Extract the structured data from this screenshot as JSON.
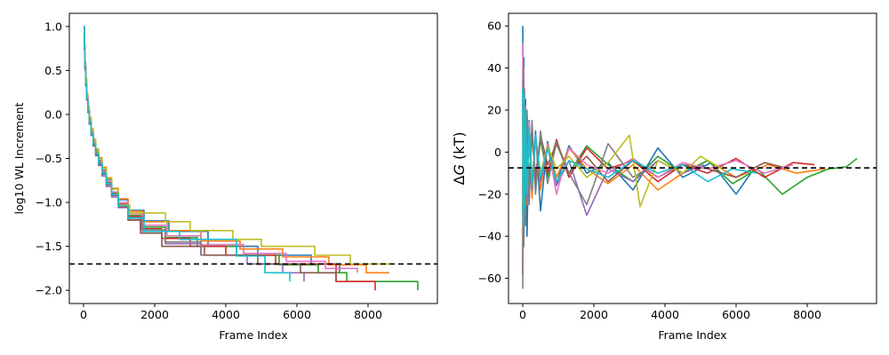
{
  "colors": {
    "tab10": [
      "#1f77b4",
      "#ff7f0e",
      "#2ca02c",
      "#d62728",
      "#9467bd",
      "#8c564b",
      "#e377c2",
      "#7f7f7f",
      "#bcbd22",
      "#17becf"
    ],
    "reference_line": "#000000"
  },
  "chart_data": [
    {
      "type": "line",
      "title": "",
      "xlabel": "Frame Index",
      "ylabel": "log10 WL Increment",
      "xlim": [
        -400,
        9950
      ],
      "ylim": [
        -2.15,
        1.15
      ],
      "xticks": [
        0,
        2000,
        4000,
        6000,
        8000
      ],
      "yticks": [
        1.0,
        0.5,
        0.0,
        -0.5,
        -1.0,
        -1.5,
        -2.0
      ],
      "xtick_labels": [
        "0",
        "2000",
        "4000",
        "6000",
        "8000"
      ],
      "ytick_labels": [
        "1.0",
        "0.5",
        "0.0",
        "−0.5",
        "−1.0",
        "−1.5",
        "−2.0"
      ],
      "reference_line": {
        "y": -1.7,
        "style": "dashed"
      },
      "grid": false,
      "series": [
        {
          "x": [
            0,
            20,
            40,
            60,
            90,
            120,
            160,
            210,
            270,
            340,
            420,
            520,
            640,
            790,
            980,
            1250,
            1700,
            2400,
            3500,
            4900,
            6400,
            7200
          ],
          "y": [
            1.0,
            0.78,
            0.55,
            0.36,
            0.19,
            0.05,
            -0.08,
            -0.2,
            -0.31,
            -0.41,
            -0.52,
            -0.63,
            -0.74,
            -0.85,
            -0.97,
            -1.09,
            -1.21,
            -1.33,
            -1.5,
            -1.6,
            -1.7,
            -1.8
          ]
        },
        {
          "x": [
            0,
            20,
            40,
            60,
            90,
            120,
            160,
            210,
            270,
            340,
            420,
            520,
            640,
            790,
            980,
            1250,
            1650,
            2350,
            3300,
            4400,
            5600,
            6900,
            7950,
            8600
          ],
          "y": [
            1.0,
            0.8,
            0.58,
            0.39,
            0.22,
            0.08,
            -0.05,
            -0.18,
            -0.3,
            -0.4,
            -0.49,
            -0.6,
            -0.72,
            -0.84,
            -0.96,
            -1.1,
            -1.22,
            -1.32,
            -1.44,
            -1.53,
            -1.62,
            -1.71,
            -1.8,
            -1.8
          ]
        },
        {
          "x": [
            0,
            20,
            40,
            60,
            90,
            120,
            160,
            210,
            270,
            340,
            420,
            520,
            640,
            790,
            980,
            1250,
            1650,
            2300,
            3200,
            4300,
            5500,
            6600,
            7400,
            9400
          ],
          "y": [
            1.0,
            0.76,
            0.53,
            0.35,
            0.18,
            0.04,
            -0.09,
            -0.22,
            -0.34,
            -0.45,
            -0.56,
            -0.67,
            -0.78,
            -0.9,
            -1.02,
            -1.15,
            -1.28,
            -1.4,
            -1.5,
            -1.6,
            -1.71,
            -1.8,
            -1.9,
            -2.0
          ]
        },
        {
          "x": [
            0,
            20,
            40,
            60,
            90,
            120,
            160,
            210,
            270,
            340,
            420,
            520,
            640,
            790,
            980,
            1250,
            1600,
            2200,
            3000,
            4000,
            5400,
            7100,
            8200
          ],
          "y": [
            1.0,
            0.77,
            0.54,
            0.36,
            0.2,
            0.06,
            -0.07,
            -0.2,
            -0.32,
            -0.43,
            -0.54,
            -0.65,
            -0.77,
            -0.89,
            -1.02,
            -1.16,
            -1.3,
            -1.41,
            -1.5,
            -1.6,
            -1.7,
            -1.9,
            -2.0
          ]
        },
        {
          "x": [
            0,
            20,
            40,
            60,
            90,
            120,
            160,
            210,
            270,
            340,
            420,
            520,
            640,
            790,
            980,
            1250,
            1650,
            2300,
            3300,
            4600,
            5600,
            6200
          ],
          "y": [
            1.0,
            0.74,
            0.5,
            0.32,
            0.16,
            0.02,
            -0.11,
            -0.24,
            -0.36,
            -0.47,
            -0.58,
            -0.7,
            -0.82,
            -0.94,
            -1.06,
            -1.2,
            -1.33,
            -1.47,
            -1.6,
            -1.7,
            -1.8,
            -1.9
          ]
        },
        {
          "x": [
            0,
            20,
            40,
            60,
            90,
            120,
            160,
            210,
            270,
            340,
            420,
            520,
            640,
            790,
            980,
            1250,
            1600,
            2200,
            3400,
            4900,
            6100,
            7100
          ],
          "y": [
            1.0,
            0.75,
            0.52,
            0.34,
            0.17,
            0.03,
            -0.1,
            -0.23,
            -0.35,
            -0.46,
            -0.57,
            -0.68,
            -0.8,
            -0.92,
            -1.05,
            -1.2,
            -1.35,
            -1.5,
            -1.6,
            -1.7,
            -1.8,
            -1.9
          ]
        },
        {
          "x": [
            0,
            20,
            40,
            60,
            90,
            120,
            160,
            210,
            270,
            340,
            420,
            520,
            640,
            790,
            980,
            1250,
            1650,
            2350,
            3300,
            4500,
            5700,
            6800,
            7700
          ],
          "y": [
            1.0,
            0.79,
            0.56,
            0.37,
            0.2,
            0.06,
            -0.06,
            -0.19,
            -0.31,
            -0.42,
            -0.53,
            -0.64,
            -0.76,
            -0.88,
            -1.0,
            -1.13,
            -1.26,
            -1.38,
            -1.48,
            -1.58,
            -1.67,
            -1.75,
            -1.8
          ]
        },
        {
          "x": [
            0,
            20,
            40,
            60,
            90,
            120,
            160,
            210,
            270,
            340,
            420,
            520,
            640,
            790,
            980,
            1250,
            1650,
            2300,
            3300
          ],
          "y": [
            1.0,
            0.78,
            0.55,
            0.36,
            0.19,
            0.05,
            -0.08,
            -0.21,
            -0.33,
            -0.44,
            -0.55,
            -0.66,
            -0.78,
            -0.9,
            -1.03,
            -1.17,
            -1.31,
            -1.45,
            -1.6
          ]
        },
        {
          "x": [
            0,
            20,
            40,
            60,
            90,
            120,
            160,
            210,
            270,
            340,
            420,
            520,
            640,
            790,
            980,
            1300,
            2300,
            3000,
            4200,
            5000,
            6500,
            7500,
            8000,
            8600
          ],
          "y": [
            1.0,
            0.81,
            0.6,
            0.41,
            0.24,
            0.1,
            -0.03,
            -0.16,
            -0.28,
            -0.39,
            -0.5,
            -0.61,
            -0.73,
            -0.85,
            -1.03,
            -1.12,
            -1.22,
            -1.32,
            -1.42,
            -1.5,
            -1.6,
            -1.7,
            -1.7,
            -1.7
          ]
        },
        {
          "x": [
            0,
            20,
            40,
            60,
            90,
            120,
            160,
            210,
            270,
            340,
            420,
            520,
            640,
            790,
            980,
            1250,
            1700,
            2700,
            4300,
            5100,
            5800
          ],
          "y": [
            1.0,
            0.77,
            0.54,
            0.35,
            0.18,
            0.04,
            -0.09,
            -0.22,
            -0.34,
            -0.45,
            -0.56,
            -0.67,
            -0.79,
            -0.91,
            -1.04,
            -1.18,
            -1.33,
            -1.42,
            -1.61,
            -1.8,
            -1.9
          ]
        }
      ]
    },
    {
      "type": "line",
      "title": "",
      "xlabel": "Frame Index",
      "ylabel": "ΔG (kT)",
      "ylabel_math": {
        "delta": "Δ",
        "symbol": "G",
        "unit": " (kT)"
      },
      "xlim": [
        -400,
        9950
      ],
      "ylim": [
        -72,
        66
      ],
      "xticks": [
        0,
        2000,
        4000,
        6000,
        8000
      ],
      "yticks": [
        60,
        40,
        20,
        0,
        -20,
        -40,
        -60
      ],
      "xtick_labels": [
        "0",
        "2000",
        "4000",
        "6000",
        "8000"
      ],
      "ytick_labels": [
        "60",
        "40",
        "20",
        "0",
        "−20",
        "−40",
        "−60"
      ],
      "reference_line": {
        "y": -7.5,
        "style": "dashed"
      },
      "grid": false,
      "series": [
        {
          "x": [
            0,
            15,
            30,
            50,
            80,
            120,
            180,
            260,
            360,
            500,
            700,
            950,
            1300,
            1800,
            2400,
            3100,
            3800,
            4500,
            5300,
            6000,
            6500
          ],
          "y": [
            60,
            20,
            45,
            -30,
            25,
            -40,
            15,
            -20,
            10,
            -28,
            5,
            -15,
            3,
            -10,
            -5,
            -18,
            2,
            -12,
            -5,
            -20,
            -8
          ]
        },
        {
          "x": [
            0,
            15,
            30,
            50,
            80,
            120,
            180,
            260,
            360,
            500,
            700,
            950,
            1300,
            1800,
            2400,
            3100,
            3800,
            4500,
            5200,
            6000,
            6900,
            7700,
            8500
          ],
          "y": [
            25,
            -40,
            30,
            -35,
            18,
            -25,
            12,
            -22,
            8,
            -18,
            4,
            -12,
            2,
            -8,
            -15,
            -6,
            -18,
            -10,
            -4,
            -12,
            -6,
            -10,
            -8
          ]
        },
        {
          "x": [
            0,
            15,
            30,
            50,
            80,
            120,
            180,
            260,
            360,
            500,
            700,
            950,
            1300,
            1800,
            2400,
            3100,
            3800,
            4500,
            5200,
            5900,
            6600,
            7300,
            8000,
            8600,
            9100,
            9400
          ],
          "y": [
            -30,
            35,
            -45,
            20,
            -30,
            15,
            -20,
            10,
            -15,
            6,
            -12,
            4,
            -10,
            3,
            -6,
            -14,
            -2,
            -10,
            -4,
            -15,
            -8,
            -20,
            -12,
            -8,
            -7,
            -3
          ]
        },
        {
          "x": [
            0,
            15,
            30,
            50,
            80,
            120,
            180,
            260,
            360,
            500,
            700,
            950,
            1300,
            1800,
            2400,
            3100,
            3800,
            4500,
            5200,
            6000,
            6800,
            7600,
            8200
          ],
          "y": [
            -58,
            30,
            -40,
            22,
            -28,
            18,
            -22,
            12,
            -15,
            8,
            -10,
            6,
            -12,
            2,
            -8,
            -4,
            -14,
            -6,
            -10,
            -3,
            -12,
            -5,
            -6
          ]
        },
        {
          "x": [
            0,
            15,
            30,
            50,
            80,
            120,
            180,
            260,
            360,
            500,
            700,
            950,
            1300,
            1800,
            2400,
            3100,
            3800,
            4500,
            5100
          ],
          "y": [
            35,
            -45,
            25,
            -30,
            15,
            -22,
            10,
            -18,
            6,
            -14,
            2,
            -16,
            -4,
            -30,
            -8,
            -14,
            -4,
            -10,
            -6
          ]
        },
        {
          "x": [
            0,
            15,
            30,
            50,
            80,
            120,
            180,
            260,
            360,
            500,
            700,
            950,
            1300,
            1800,
            2400,
            3100,
            3800,
            4500,
            5200,
            6000,
            6800,
            7500
          ],
          "y": [
            -20,
            35,
            -30,
            25,
            -25,
            15,
            -18,
            10,
            -12,
            8,
            -6,
            4,
            -10,
            -2,
            -14,
            -4,
            -12,
            -6,
            -8,
            -12,
            -5,
            -8
          ]
        },
        {
          "x": [
            0,
            15,
            30,
            50,
            80,
            120,
            180,
            260,
            360,
            500,
            700,
            950,
            1300,
            1800,
            2400,
            3100,
            3800,
            4500,
            5200,
            6000,
            6800,
            7600
          ],
          "y": [
            52,
            -38,
            40,
            -25,
            22,
            -18,
            14,
            -15,
            8,
            -12,
            4,
            -20,
            2,
            -6,
            -10,
            -3,
            -12,
            -5,
            -8,
            -4,
            -10,
            -6
          ]
        },
        {
          "x": [
            0,
            15,
            30,
            50,
            80,
            120,
            180,
            260,
            360,
            500,
            700,
            950,
            1300,
            1800,
            2400,
            3100,
            3700
          ],
          "y": [
            -65,
            40,
            -45,
            30,
            -35,
            20,
            -25,
            15,
            -20,
            10,
            -15,
            5,
            -10,
            -25,
            4,
            -12,
            -6
          ]
        },
        {
          "x": [
            0,
            15,
            30,
            50,
            80,
            120,
            180,
            260,
            360,
            500,
            700,
            950,
            1300,
            1800,
            2400,
            3000,
            3300,
            3800,
            4500,
            5000,
            5600
          ],
          "y": [
            15,
            -30,
            22,
            -25,
            14,
            -18,
            10,
            -14,
            6,
            -10,
            3,
            -8,
            -2,
            -12,
            -5,
            8,
            -26,
            -4,
            -10,
            -2,
            -8
          ]
        },
        {
          "x": [
            0,
            15,
            30,
            50,
            80,
            120,
            180,
            260,
            360,
            500,
            700,
            950,
            1300,
            1800,
            2400,
            3100,
            3800,
            4500,
            5200,
            5900,
            6600
          ],
          "y": [
            30,
            -35,
            28,
            -28,
            20,
            -20,
            12,
            -16,
            8,
            -12,
            2,
            -14,
            -4,
            -8,
            -12,
            -4,
            -10,
            -6,
            -14,
            -8,
            -10
          ]
        }
      ]
    }
  ]
}
